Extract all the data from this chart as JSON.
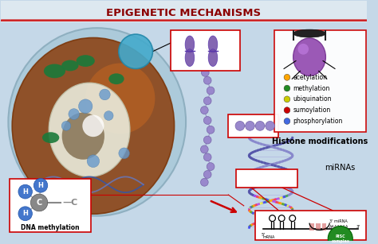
{
  "title": "EPIGENETIC MECHANISMS",
  "title_color": "#8B0000",
  "title_fontsize": 9.5,
  "bg_color": "#c5d8e8",
  "header_color": "#dde8f0",
  "legend_items": [
    {
      "label": "acetylation",
      "color": "#FFA500"
    },
    {
      "label": "methylation",
      "color": "#228B22"
    },
    {
      "label": "ubiquination",
      "color": "#cccc00"
    },
    {
      "label": "sumoylation",
      "color": "#CC0000"
    },
    {
      "label": "phosphorylation",
      "color": "#4169E1"
    }
  ],
  "histone_label": "Histone modifications",
  "mirna_label": "miRNAs",
  "dna_label": "DNA methylation",
  "box_color": "#CC0000",
  "line_color": "#CC0000"
}
